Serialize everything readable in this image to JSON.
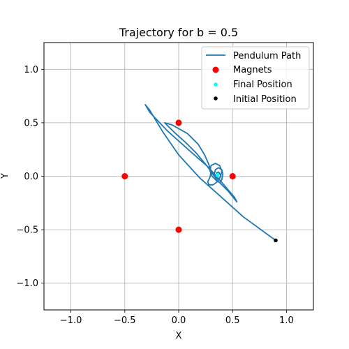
{
  "chart_data": {
    "type": "scatter",
    "title": "Trajectory for b = 0.5",
    "xlabel": "X",
    "ylabel": "Y",
    "xlim": [
      -1.25,
      1.25
    ],
    "ylim": [
      -1.25,
      1.25
    ],
    "xticks": [
      -1.0,
      -0.5,
      0.0,
      0.5,
      1.0
    ],
    "xtick_labels": [
      "−1.0",
      "−0.5",
      "0.0",
      "0.5",
      "1.0"
    ],
    "yticks": [
      -1.0,
      -0.5,
      0.0,
      0.5,
      1.0
    ],
    "ytick_labels": [
      "−1.0",
      "−0.5",
      "0.0",
      "0.5",
      "1.0"
    ],
    "grid": true,
    "legend_position": "top-right",
    "series": [
      {
        "name": "Pendulum Path",
        "kind": "line",
        "color": "#1f77b4",
        "x": [
          0.9,
          0.6,
          0.4,
          0.2,
          0.0,
          -0.15,
          -0.27,
          -0.31,
          -0.27,
          -0.1,
          0.1,
          0.28,
          0.42,
          0.52,
          0.54,
          0.46,
          0.36,
          0.26,
          0.16,
          0.06,
          -0.03,
          -0.13,
          -0.06,
          0.08,
          0.18,
          0.24,
          0.28,
          0.3,
          0.29,
          0.27,
          0.28,
          0.32,
          0.36,
          0.39,
          0.4,
          0.38,
          0.34,
          0.3,
          0.29,
          0.31,
          0.35,
          0.38,
          0.4,
          0.41,
          0.4,
          0.37,
          0.34,
          0.33,
          0.35,
          0.38,
          0.39,
          0.37,
          0.35,
          0.36
        ],
        "y": [
          -0.6,
          -0.38,
          -0.2,
          -0.02,
          0.2,
          0.42,
          0.62,
          0.67,
          0.6,
          0.42,
          0.24,
          0.08,
          -0.08,
          -0.2,
          -0.24,
          -0.14,
          -0.04,
          0.1,
          0.22,
          0.32,
          0.4,
          0.5,
          0.48,
          0.4,
          0.3,
          0.2,
          0.11,
          0.04,
          -0.01,
          -0.05,
          -0.08,
          -0.08,
          -0.05,
          0.0,
          0.05,
          0.1,
          0.12,
          0.1,
          0.05,
          0.0,
          -0.04,
          -0.06,
          -0.03,
          0.02,
          0.06,
          0.08,
          0.06,
          0.02,
          -0.02,
          -0.02,
          0.01,
          0.04,
          0.03,
          0.01
        ]
      },
      {
        "name": "Magnets",
        "kind": "scatter",
        "color": "#ff0000",
        "x": [
          0.0,
          -0.5,
          0.5,
          0.0
        ],
        "y": [
          0.5,
          0.0,
          0.0,
          -0.5
        ]
      },
      {
        "name": "Final Position",
        "kind": "scatter",
        "color": "#00ffff",
        "x": [
          0.36
        ],
        "y": [
          0.01
        ]
      },
      {
        "name": "Initial Position",
        "kind": "scatter",
        "color": "#000000",
        "x": [
          0.9
        ],
        "y": [
          -0.6
        ]
      }
    ]
  }
}
